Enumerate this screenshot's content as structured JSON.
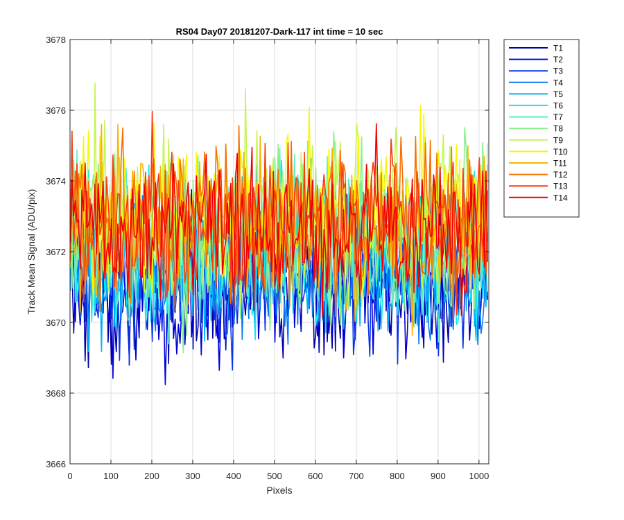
{
  "chart_data": {
    "type": "line",
    "title": "RS04 Day07 20181207-Dark-117 int time = 10 sec",
    "xlabel": "Pixels",
    "ylabel": "Track Mean Signal (ADU/pix)",
    "xlim": [
      0,
      1024
    ],
    "ylim": [
      3666,
      3678
    ],
    "xticks": [
      0,
      100,
      200,
      300,
      400,
      500,
      600,
      700,
      800,
      900,
      1000
    ],
    "yticks": [
      3666,
      3668,
      3670,
      3672,
      3674,
      3676,
      3678
    ],
    "grid": true,
    "legend_position": "outside-top-right",
    "x_step": 4,
    "series": [
      {
        "name": "T1",
        "color": "#0000aa",
        "mean": 3671.0,
        "amplitude": 1.0
      },
      {
        "name": "T2",
        "color": "#0000d8",
        "mean": 3671.1,
        "amplitude": 1.0
      },
      {
        "name": "T3",
        "color": "#0a34e8",
        "mean": 3671.4,
        "amplitude": 1.0
      },
      {
        "name": "T4",
        "color": "#0a78f0",
        "mean": 3671.6,
        "amplitude": 1.0
      },
      {
        "name": "T5",
        "color": "#00b0f8",
        "mean": 3671.8,
        "amplitude": 1.05
      },
      {
        "name": "T6",
        "color": "#19e6f0",
        "mean": 3672.0,
        "amplitude": 1.05
      },
      {
        "name": "T7",
        "color": "#5af0c8",
        "mean": 3672.3,
        "amplitude": 1.1
      },
      {
        "name": "T8",
        "color": "#8af08a",
        "mean": 3672.6,
        "amplitude": 1.15
      },
      {
        "name": "T9",
        "color": "#c6f552",
        "mean": 3673.0,
        "amplitude": 1.2
      },
      {
        "name": "T10",
        "color": "#f8f800",
        "mean": 3673.1,
        "amplitude": 1.15
      },
      {
        "name": "T11",
        "color": "#f8b400",
        "mean": 3673.0,
        "amplitude": 1.1
      },
      {
        "name": "T12",
        "color": "#f87000",
        "mean": 3672.9,
        "amplitude": 1.05
      },
      {
        "name": "T13",
        "color": "#f83c14",
        "mean": 3672.8,
        "amplitude": 1.0
      },
      {
        "name": "T14",
        "color": "#f00000",
        "mean": 3672.7,
        "amplitude": 1.0
      }
    ]
  }
}
